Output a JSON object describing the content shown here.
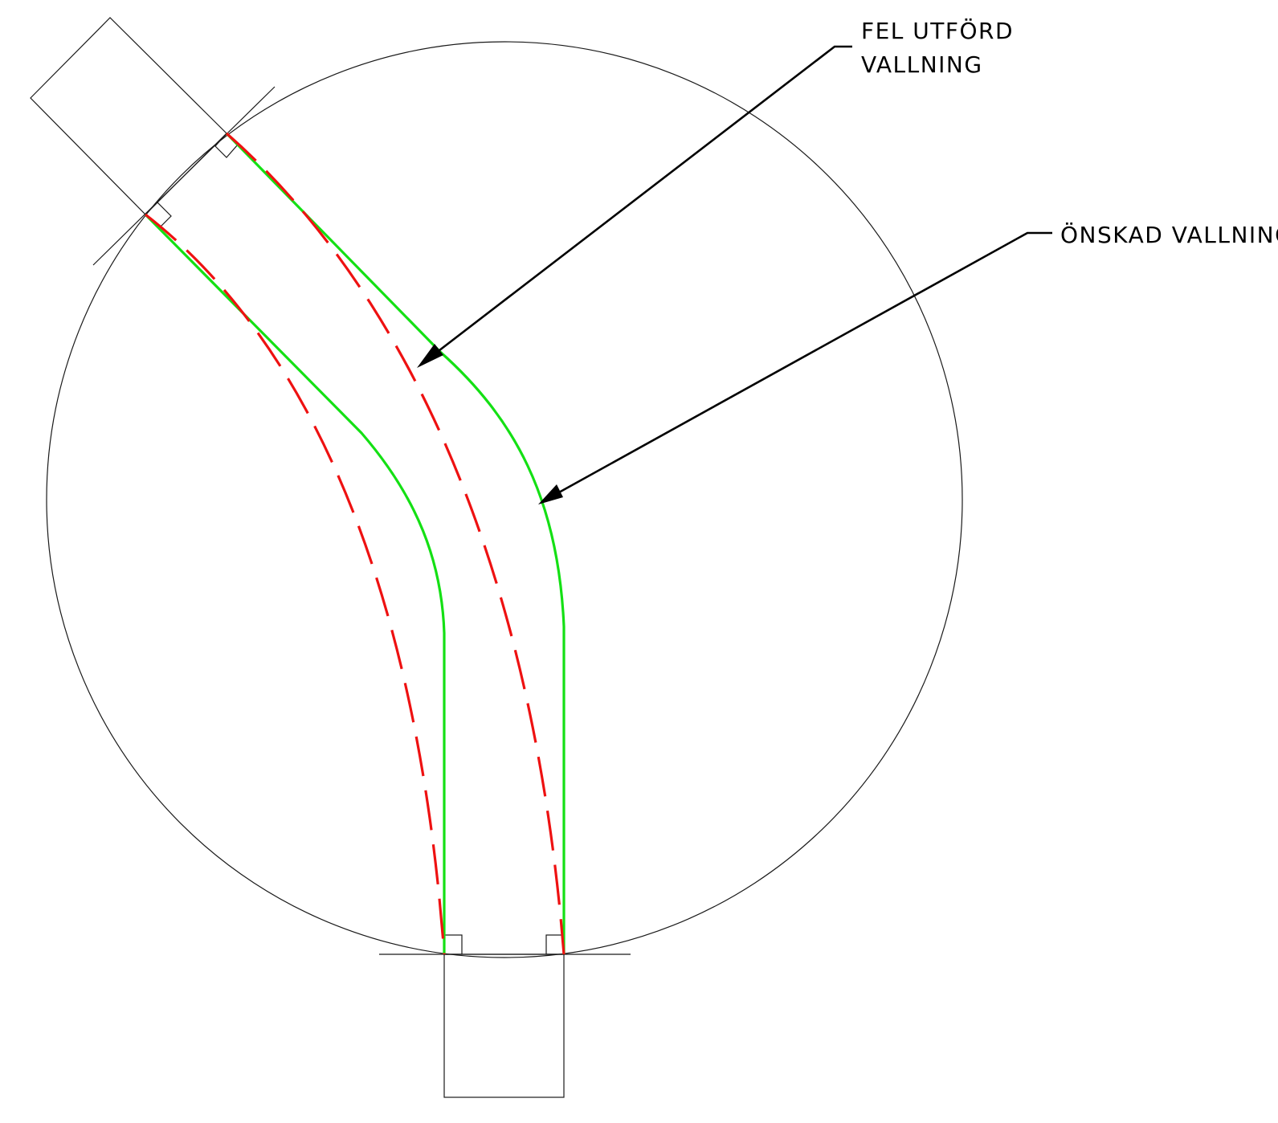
{
  "labels": {
    "wrong": {
      "line1": "FEL UTFÖRD",
      "line2": "VALLNING"
    },
    "desired": "ÖNSKAD VALLNING"
  },
  "colors": {
    "desired_path": "#14e014",
    "wrong_path": "#ee1111",
    "linework": "#1a1a1a"
  }
}
